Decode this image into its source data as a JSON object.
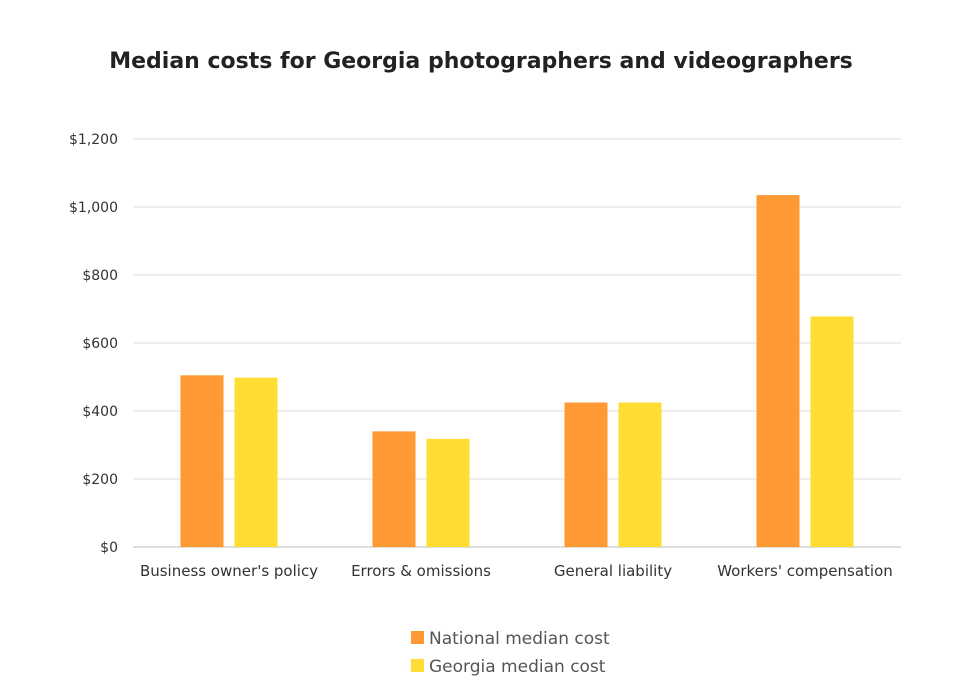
{
  "chart_data": {
    "type": "bar",
    "title": "Median costs for Georgia photographers and videographers",
    "xlabel": "",
    "ylabel": "",
    "categories": [
      "Business owner's policy",
      "Errors & omissions",
      "General liability",
      "Workers' compensation"
    ],
    "series": [
      {
        "name": "National median cost",
        "color": "#FF9933",
        "values": [
          505,
          340,
          425,
          1035
        ]
      },
      {
        "name": "Georgia median cost",
        "color": "#FFDD33",
        "values": [
          498,
          318,
          425,
          678
        ]
      }
    ],
    "ylim": [
      0,
      1200
    ],
    "yticks": [
      0,
      200,
      400,
      600,
      800,
      1000,
      1200
    ],
    "ytick_labels": [
      "$0",
      "$200",
      "$400",
      "$600",
      "$800",
      "$1,000",
      "$1,200"
    ],
    "grid": true,
    "legend_position": "bottom"
  }
}
